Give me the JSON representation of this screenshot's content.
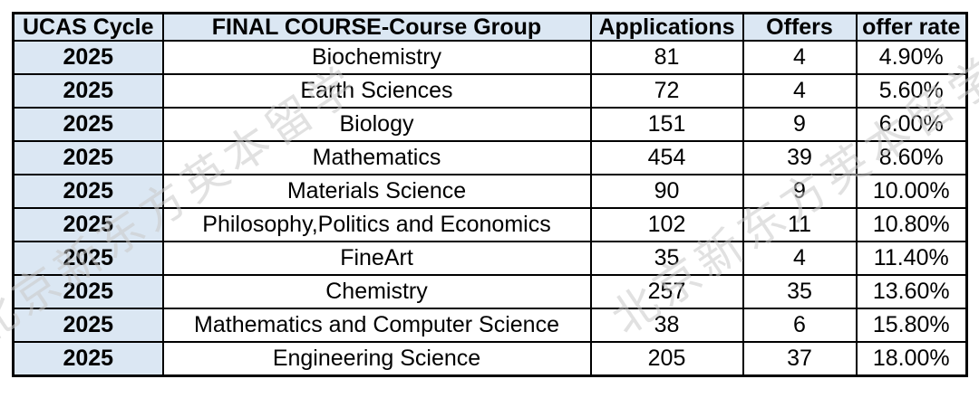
{
  "chart_data": {
    "type": "table",
    "columns": [
      {
        "key": "cycle",
        "label": "UCAS Cycle"
      },
      {
        "key": "course",
        "label": "FINAL COURSE-Course Group"
      },
      {
        "key": "applications",
        "label": "Applications"
      },
      {
        "key": "offers",
        "label": "Offers"
      },
      {
        "key": "offer_rate",
        "label": "offer rate"
      }
    ],
    "rows": [
      {
        "cycle": "2025",
        "course": "Biochemistry",
        "applications": "81",
        "offers": "4",
        "offer_rate": "4.90%"
      },
      {
        "cycle": "2025",
        "course": "Earth Sciences",
        "applications": "72",
        "offers": "4",
        "offer_rate": "5.60%"
      },
      {
        "cycle": "2025",
        "course": "Biology",
        "applications": "151",
        "offers": "9",
        "offer_rate": "6.00%"
      },
      {
        "cycle": "2025",
        "course": "Mathematics",
        "applications": "454",
        "offers": "39",
        "offer_rate": "8.60%"
      },
      {
        "cycle": "2025",
        "course": "Materials Science",
        "applications": "90",
        "offers": "9",
        "offer_rate": "10.00%"
      },
      {
        "cycle": "2025",
        "course": "Philosophy,Politics and Economics",
        "applications": "102",
        "offers": "11",
        "offer_rate": "10.80%"
      },
      {
        "cycle": "2025",
        "course": "FineArt",
        "applications": "35",
        "offers": "4",
        "offer_rate": "11.40%"
      },
      {
        "cycle": "2025",
        "course": "Chemistry",
        "applications": "257",
        "offers": "35",
        "offer_rate": "13.60%"
      },
      {
        "cycle": "2025",
        "course": "Mathematics and Computer Science",
        "applications": "38",
        "offers": "6",
        "offer_rate": "15.80%"
      },
      {
        "cycle": "2025",
        "course": "Engineering Science",
        "applications": "205",
        "offers": "37",
        "offer_rate": "18.00%"
      }
    ]
  },
  "watermark": {
    "text": "北京新东方英本留学",
    "color_hex": "#c9c9c9"
  },
  "colors": {
    "header_bg": "#dbe7f3",
    "cycle_col_bg": "#dbe7f3",
    "border": "#000000",
    "text": "#000000",
    "page_bg": "#ffffff"
  }
}
